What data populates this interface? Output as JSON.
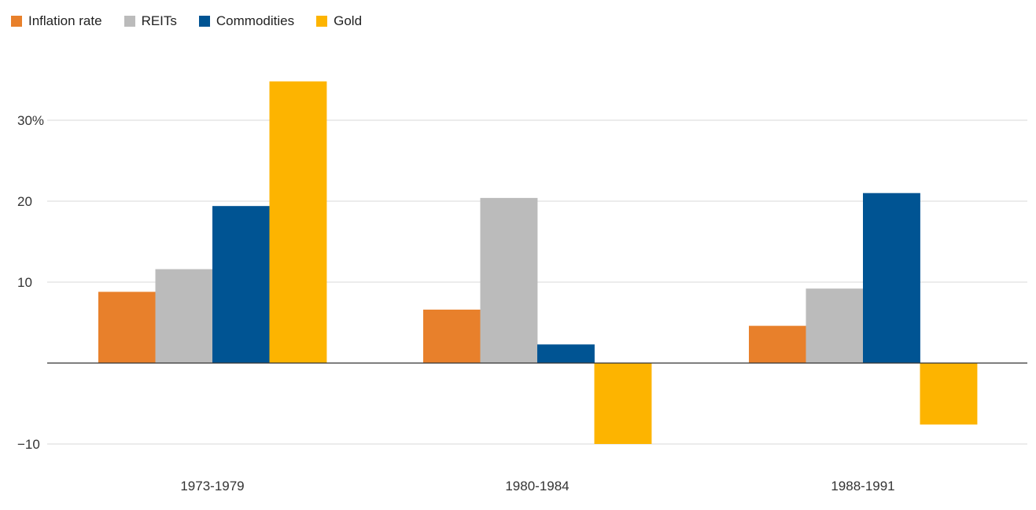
{
  "chart_data": {
    "type": "bar",
    "categories": [
      "1973-1979",
      "1980-1984",
      "1988-1991"
    ],
    "series": [
      {
        "name": "Inflation rate",
        "color": "#E8802B",
        "values": [
          8.8,
          6.6,
          4.6
        ]
      },
      {
        "name": "REITs",
        "color": "#BBBBBB",
        "values": [
          11.6,
          20.4,
          9.2
        ]
      },
      {
        "name": "Commodities",
        "color": "#005493",
        "values": [
          19.4,
          2.3,
          21.0
        ]
      },
      {
        "name": "Gold",
        "color": "#FDB400",
        "values": [
          34.8,
          -10.0,
          -7.6
        ]
      }
    ],
    "yticks": [
      {
        "value": 30,
        "label": "30%"
      },
      {
        "value": 20,
        "label": "20"
      },
      {
        "value": 10,
        "label": "10"
      },
      {
        "value": -10,
        "label": "−10"
      }
    ],
    "ylim": [
      -12,
      40
    ],
    "grid": true,
    "legend_position": "top-left",
    "title": "",
    "xlabel": "",
    "ylabel": ""
  }
}
